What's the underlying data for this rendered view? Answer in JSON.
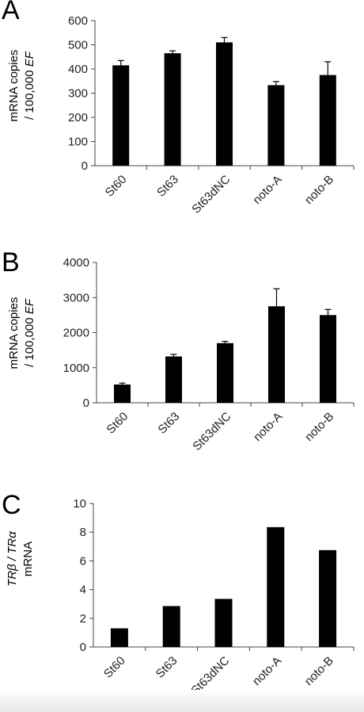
{
  "chart_data": [
    {
      "panel": "A",
      "type": "bar",
      "ylabel": [
        "mRNA copies",
        "/ 100,000 EF"
      ],
      "ylim": [
        0,
        600
      ],
      "yticks": [
        0,
        100,
        200,
        300,
        400,
        500,
        600
      ],
      "categories": [
        "St60",
        "St63",
        "St63dNC",
        "noto-A",
        "noto-B"
      ],
      "values": [
        415,
        465,
        510,
        333,
        375
      ],
      "errors": [
        20,
        10,
        20,
        15,
        55
      ],
      "bar_color": "#000000",
      "grid": false
    },
    {
      "panel": "B",
      "type": "bar",
      "ylabel": [
        "mRNA copies",
        "/ 100,000 EF"
      ],
      "ylim": [
        0,
        4000
      ],
      "yticks": [
        0,
        1000,
        2000,
        3000,
        4000
      ],
      "categories": [
        "St60",
        "St63",
        "St63dNC",
        "noto-A",
        "noto-B"
      ],
      "values": [
        520,
        1320,
        1700,
        2750,
        2500
      ],
      "errors": [
        40,
        60,
        50,
        500,
        160
      ],
      "bar_color": "#000000",
      "grid": false
    },
    {
      "panel": "C",
      "type": "bar",
      "ylabel": [
        "TRβ / TRα",
        "mRNA"
      ],
      "ylim": [
        0,
        10
      ],
      "yticks": [
        0,
        2,
        4,
        6,
        8,
        10
      ],
      "categories": [
        "St60",
        "St63",
        "St63dNC",
        "noto-A",
        "noto-B"
      ],
      "values": [
        1.3,
        2.85,
        3.35,
        8.35,
        6.75
      ],
      "errors": [
        0,
        0,
        0,
        0,
        0
      ],
      "bar_color": "#000000",
      "grid": false
    }
  ]
}
